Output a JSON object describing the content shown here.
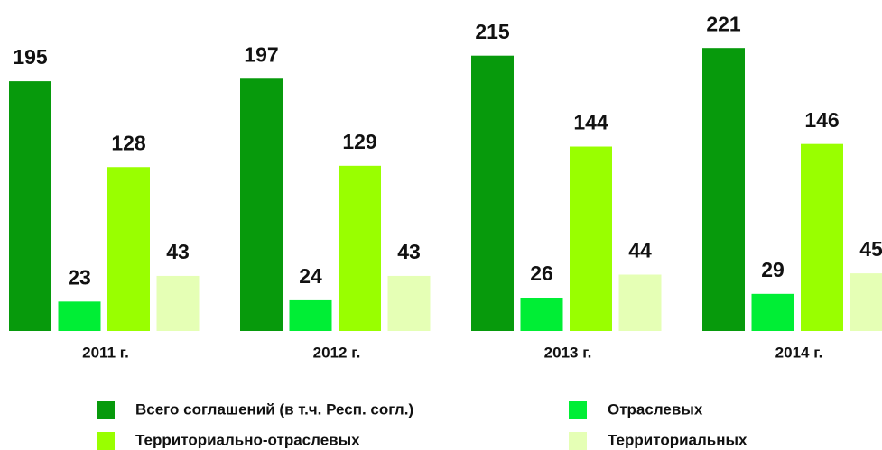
{
  "chart_data": {
    "type": "bar",
    "categories": [
      "2011 г.",
      "2012 г.",
      "2013 г.",
      "2014 г."
    ],
    "series": [
      {
        "name": "Всего соглашений (в т.ч. Респ. согл.)",
        "color": "#079a0c",
        "values": [
          195,
          197,
          215,
          221
        ]
      },
      {
        "name": "Отраслевых",
        "color": "#00ee35",
        "values": [
          23,
          24,
          26,
          29
        ]
      },
      {
        "name": "Территориально-отраслевых",
        "color": "#99ff00",
        "values": [
          128,
          129,
          144,
          146
        ]
      },
      {
        "name": "Территориальных",
        "color": "#e5ffb5",
        "values": [
          43,
          43,
          44,
          45
        ]
      }
    ]
  }
}
